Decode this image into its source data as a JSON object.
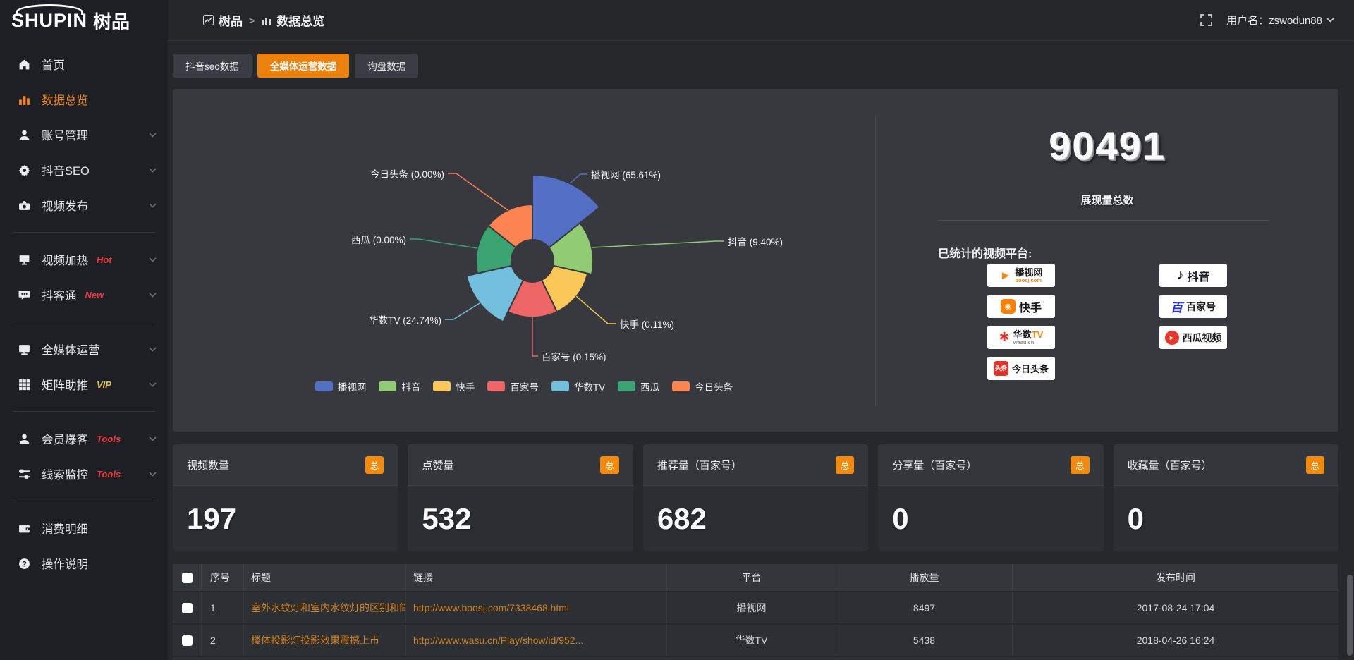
{
  "sidebar": {
    "logo_en": "SHUPIN",
    "logo_cn": "树品",
    "items": [
      {
        "id": "home",
        "icon": "home",
        "label": "首页",
        "expandable": false
      },
      {
        "id": "data-overview",
        "icon": "bars",
        "label": "数据总览",
        "active": true,
        "expandable": false
      },
      {
        "id": "account-management",
        "icon": "user",
        "label": "账号管理",
        "expandable": true
      },
      {
        "id": "douyin-seo",
        "icon": "gear",
        "label": "抖音SEO",
        "expandable": true
      },
      {
        "id": "video-publish",
        "icon": "publish",
        "label": "视频发布",
        "expandable": true
      },
      {
        "divider": true
      },
      {
        "id": "video-heating",
        "icon": "screen",
        "label": "视频加热",
        "tag": "Hot",
        "tag_color": "#e83b3b",
        "expandable": true
      },
      {
        "id": "douketong",
        "icon": "chat",
        "label": "抖客通",
        "tag": "New",
        "tag_color": "#e83b3b",
        "expandable": true
      },
      {
        "divider": true
      },
      {
        "id": "media-operation",
        "icon": "monitor",
        "label": "全媒体运营",
        "expandable": true
      },
      {
        "id": "matrix-boost",
        "icon": "grid",
        "label": "矩阵助推",
        "tag": "VIP",
        "tag_color": "#e5c14d",
        "expandable": true
      },
      {
        "divider": true
      },
      {
        "id": "member-baoke",
        "icon": "user",
        "label": "会员爆客",
        "tag": "Tools",
        "tag_color": "#e83b3b",
        "expandable": true
      },
      {
        "id": "clue-monitor",
        "icon": "sliders",
        "label": "线索监控",
        "tag": "Tools",
        "tag_color": "#e83b3b",
        "expandable": true
      },
      {
        "divider": true
      },
      {
        "id": "expense-detail",
        "icon": "wallet",
        "label": "消费明细",
        "expandable": false
      },
      {
        "id": "operation-guide",
        "icon": "question",
        "label": "操作说明",
        "expandable": false
      }
    ]
  },
  "topbar": {
    "app": "树品",
    "page": "数据总览",
    "separator": ">",
    "username": "用户名：zswodun88"
  },
  "tabs": [
    {
      "label": "抖音seo数据",
      "active": false
    },
    {
      "label": "全媒体运营数据",
      "active": true
    },
    {
      "label": "询盘数据",
      "active": false
    }
  ],
  "chart_data": {
    "type": "pie",
    "variant": "nightingale-rose",
    "title": "",
    "unit": "percent",
    "legend_position": "bottom",
    "series": [
      {
        "name": "播视网",
        "value": 65.61,
        "pct": "65.61",
        "color": "#5470c6"
      },
      {
        "name": "抖音",
        "value": 9.4,
        "pct": "9.40",
        "color": "#91cc75"
      },
      {
        "name": "快手",
        "value": 0.11,
        "pct": "0.11",
        "color": "#fac858"
      },
      {
        "name": "百家号",
        "value": 0.15,
        "pct": "0.15",
        "color": "#ee6666"
      },
      {
        "name": "华数TV",
        "value": 24.74,
        "pct": "24.74",
        "color": "#73c0de"
      },
      {
        "name": "西瓜",
        "value": 0.0,
        "pct": "0.00",
        "color": "#3ba272"
      },
      {
        "name": "今日头条",
        "value": 0.0,
        "pct": "0.00",
        "color": "#fc8452"
      }
    ],
    "legend": [
      "播视网",
      "抖音",
      "快手",
      "百家号",
      "华数TV",
      "西瓜",
      "今日头条"
    ]
  },
  "summary": {
    "total_value": "90491",
    "total_label": "展现量总数",
    "platforms_label": "已统计的视频平台:",
    "platforms": [
      {
        "name": "播视网",
        "sub": "boosj.com",
        "style": "boosj",
        "col": 1
      },
      {
        "name": "快手",
        "style": "kuaishou",
        "col": 1
      },
      {
        "name": "华数TV",
        "sub": "wasu.cn",
        "style": "wasu",
        "col": 1
      },
      {
        "name": "今日头条",
        "style": "toutiao",
        "badge": "头条",
        "col": 1
      },
      {
        "name": "抖音",
        "style": "douyin",
        "col": 2
      },
      {
        "name": "百家号",
        "style": "baijiahao",
        "col": 2
      },
      {
        "name": "西瓜视频",
        "style": "xigua",
        "col": 2
      }
    ]
  },
  "stat_cards": [
    {
      "title": "视频数量",
      "badge": "总",
      "value": "197"
    },
    {
      "title": "点赞量",
      "badge": "总",
      "value": "532"
    },
    {
      "title": "推荐量（百家号）",
      "badge": "总",
      "value": "682"
    },
    {
      "title": "分享量（百家号）",
      "badge": "总",
      "value": "0"
    },
    {
      "title": "收藏量（百家号）",
      "badge": "总",
      "value": "0"
    }
  ],
  "table": {
    "headers": [
      "序号",
      "标题",
      "链接",
      "平台",
      "播放量",
      "发布时间"
    ],
    "rows": [
      {
        "index": "1",
        "title": "室外水纹灯和室内水纹灯的区别和简介",
        "link": "http://www.boosj.com/7338468.html",
        "platform": "播视网",
        "plays": "8497",
        "time": "2017-08-24 17:04"
      },
      {
        "index": "2",
        "title": "楼体投影灯投影效果震撼上市",
        "link": "http://www.wasu.cn/Play/show/id/952...",
        "platform": "华数TV",
        "plays": "5438",
        "time": "2018-04-26 16:24"
      }
    ]
  },
  "colors": {
    "accent_orange": "#ec820d",
    "link_orange": "#d2821e",
    "hot_red": "#e83b3b",
    "vip_gold": "#e5c14d",
    "panel_bg": "#37393f",
    "sidebar_bg": "#1d1f24"
  }
}
